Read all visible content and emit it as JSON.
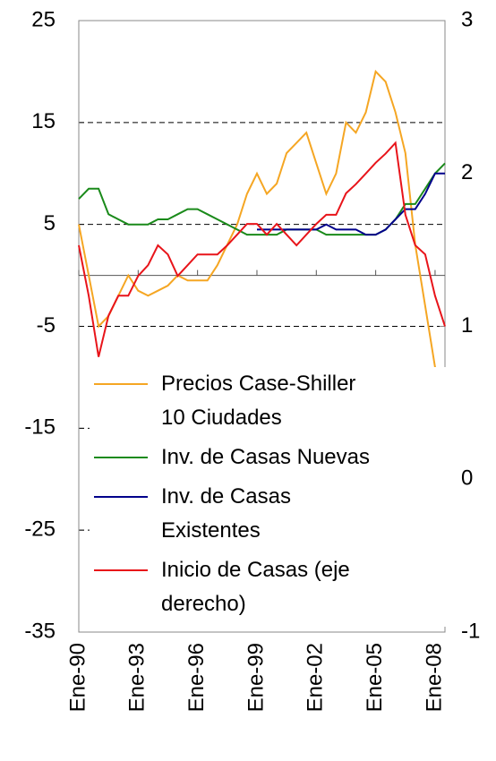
{
  "chart_data": {
    "type": "line",
    "x": [
      1990,
      1990.5,
      1991,
      1991.5,
      1992,
      1992.5,
      1993,
      1993.5,
      1994,
      1994.5,
      1995,
      1995.5,
      1996,
      1996.5,
      1997,
      1997.5,
      1998,
      1998.5,
      1999,
      1999.5,
      2000,
      2000.5,
      2001,
      2001.5,
      2002,
      2002.5,
      2003,
      2003.5,
      2004,
      2004.5,
      2005,
      2005.5,
      2006,
      2006.5,
      2007,
      2007.5,
      2008,
      2008.5
    ],
    "xlim": [
      1990,
      2008.5
    ],
    "xticks": [
      {
        "value": 1990,
        "label": "Ene-90"
      },
      {
        "value": 1993,
        "label": "Ene-93"
      },
      {
        "value": 1996,
        "label": "Ene-96"
      },
      {
        "value": 1999,
        "label": "Ene-99"
      },
      {
        "value": 2002,
        "label": "Ene-02"
      },
      {
        "value": 2005,
        "label": "Ene-05"
      },
      {
        "value": 2008,
        "label": "Ene-08"
      }
    ],
    "ylim": [
      -35,
      25
    ],
    "yticks": [
      25,
      15,
      5,
      -5,
      -15,
      -25,
      -35
    ],
    "y2lim": [
      -1,
      3
    ],
    "y2ticks": [
      3,
      2,
      1,
      0,
      -1
    ],
    "grid": true,
    "series": [
      {
        "name": "Precios Case-Shiller\n 10 Ciudades",
        "color": "#f5a623",
        "values": [
          5,
          0,
          -5,
          -4,
          -2,
          0,
          -1.5,
          -2,
          -1.5,
          -1,
          0,
          -0.5,
          -0.5,
          -0.5,
          1,
          3,
          5,
          8,
          10,
          8,
          9,
          12,
          13,
          14,
          11,
          8,
          10,
          15,
          14,
          16,
          20,
          19,
          16,
          12,
          3,
          -3,
          -9,
          -13.5
        ]
      },
      {
        "name": "Inv. de Casas Nuevas",
        "color": "#1a8a1a",
        "values": [
          7.5,
          8.5,
          8.5,
          6,
          5.5,
          5,
          5,
          5,
          5.5,
          5.5,
          6,
          6.5,
          6.5,
          6,
          5.5,
          5,
          4.5,
          4,
          4,
          4,
          4,
          4.5,
          4.5,
          4.5,
          4.5,
          4,
          4,
          4,
          4,
          4,
          4,
          4.5,
          5.5,
          7,
          7,
          8.5,
          10,
          11
        ]
      },
      {
        "name": "Inv. de Casas\nExistentes",
        "color": "#00008b",
        "values": [
          null,
          null,
          null,
          null,
          null,
          null,
          null,
          null,
          null,
          null,
          null,
          null,
          null,
          null,
          null,
          null,
          null,
          null,
          4.5,
          4.5,
          4.5,
          4.5,
          4.5,
          4.5,
          4.5,
          5,
          4.5,
          4.5,
          4.5,
          4,
          4,
          4.5,
          5.5,
          6.5,
          6.5,
          8,
          10,
          10
        ]
      },
      {
        "name": "Inicio de Casas (eje\nderecho)",
        "color": "#e8141a",
        "axis": "y2",
        "values": [
          1.53,
          1.2,
          0.8,
          1.07,
          1.2,
          1.2,
          1.33,
          1.4,
          1.53,
          1.47,
          1.33,
          1.4,
          1.47,
          1.47,
          1.47,
          1.53,
          1.6,
          1.67,
          1.67,
          1.6,
          1.67,
          1.6,
          1.53,
          1.6,
          1.67,
          1.73,
          1.73,
          1.87,
          1.93,
          2.0,
          2.07,
          2.13,
          2.2,
          1.73,
          1.53,
          1.47,
          1.2,
          1.0
        ]
      }
    ]
  }
}
